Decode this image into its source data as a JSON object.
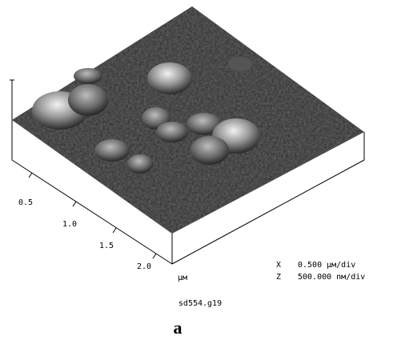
{
  "axis": {
    "ticks": [
      "0.5",
      "1.0",
      "1.5",
      "2.0"
    ],
    "unit": "µм"
  },
  "scale": {
    "x_label": "X",
    "x_value": "0.500 µм/div",
    "z_label": "Z",
    "z_value": "500.000 nм/div"
  },
  "filename": "sd554.g19",
  "caption": "a"
}
